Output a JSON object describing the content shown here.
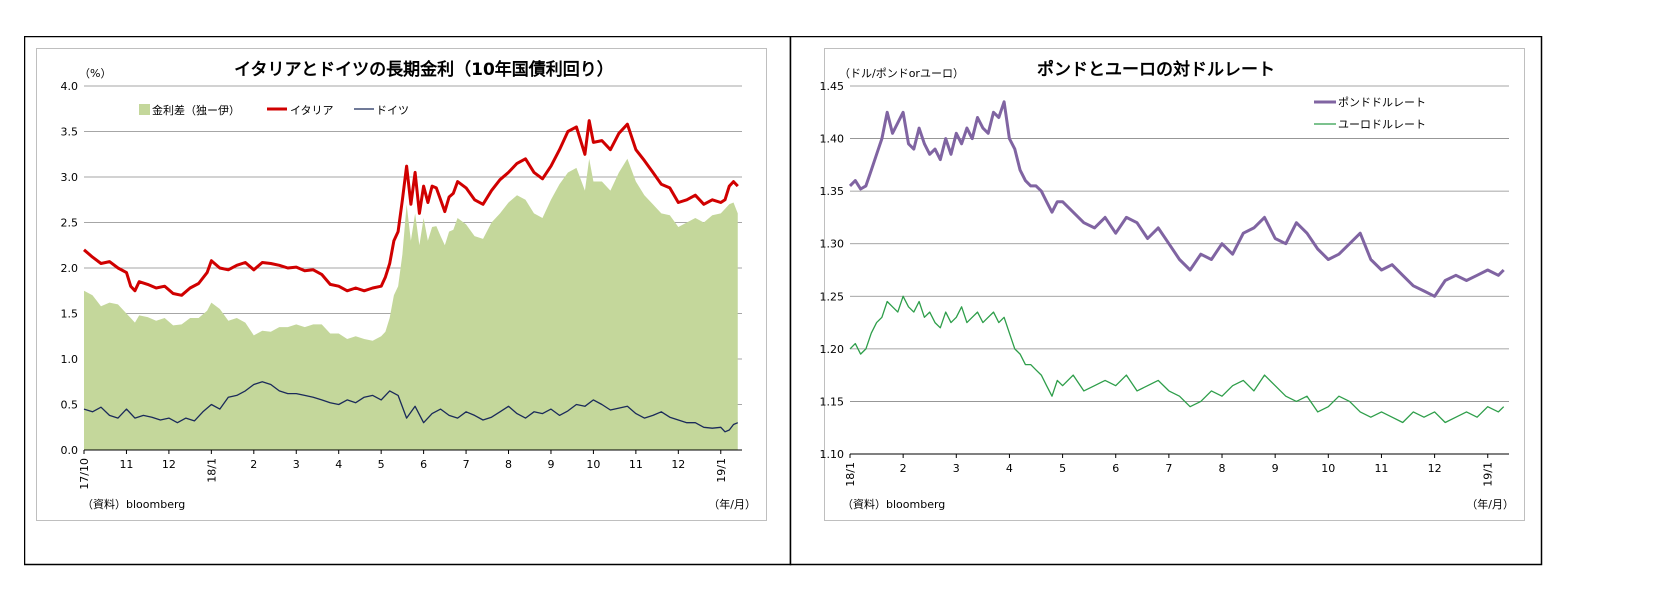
{
  "colors": {
    "spread_fill": "#c4d79b",
    "italy": "#d00000",
    "germany": "#1a2a5a",
    "gbp": "#8064a2",
    "eur": "#2e9e4a",
    "grid": "#888888"
  },
  "chart_data": [
    {
      "type": "line",
      "title": "イタリアとドイツの長期金利（10年国債利回り）",
      "unit_label": "（%）",
      "source": "（資料）bloomberg",
      "xlabel": "（年/月）",
      "ylim": [
        0,
        4.0
      ],
      "yticks": [
        "0.0",
        "0.5",
        "1.0",
        "1.5",
        "2.0",
        "2.5",
        "3.0",
        "3.5",
        "4.0"
      ],
      "xlim": [
        0,
        15.5
      ],
      "xticks": [
        {
          "pos": 0,
          "label": "17/10",
          "rotated": true
        },
        {
          "pos": 1,
          "label": "11",
          "rotated": false
        },
        {
          "pos": 2,
          "label": "12",
          "rotated": false
        },
        {
          "pos": 3,
          "label": "18/1",
          "rotated": true
        },
        {
          "pos": 4,
          "label": "2",
          "rotated": false
        },
        {
          "pos": 5,
          "label": "3",
          "rotated": false
        },
        {
          "pos": 6,
          "label": "4",
          "rotated": false
        },
        {
          "pos": 7,
          "label": "5",
          "rotated": false
        },
        {
          "pos": 8,
          "label": "6",
          "rotated": false
        },
        {
          "pos": 9,
          "label": "7",
          "rotated": false
        },
        {
          "pos": 10,
          "label": "8",
          "rotated": false
        },
        {
          "pos": 11,
          "label": "9",
          "rotated": false
        },
        {
          "pos": 12,
          "label": "10",
          "rotated": false
        },
        {
          "pos": 13,
          "label": "11",
          "rotated": false
        },
        {
          "pos": 14,
          "label": "12",
          "rotated": false
        },
        {
          "pos": 15,
          "label": "19/1",
          "rotated": true
        }
      ],
      "legend": [
        "金利差（独ー伊）",
        "イタリア",
        "ドイツ"
      ],
      "series": [
        {
          "name": "イタリア",
          "style": "line-thick",
          "x": [
            0,
            0.2,
            0.4,
            0.6,
            0.8,
            1.0,
            1.1,
            1.2,
            1.3,
            1.5,
            1.7,
            1.9,
            2.1,
            2.3,
            2.5,
            2.7,
            2.9,
            3.0,
            3.2,
            3.4,
            3.6,
            3.8,
            4.0,
            4.2,
            4.4,
            4.6,
            4.8,
            5.0,
            5.2,
            5.4,
            5.6,
            5.8,
            6.0,
            6.2,
            6.4,
            6.6,
            6.8,
            7.0,
            7.1,
            7.2,
            7.3,
            7.4,
            7.5,
            7.6,
            7.7,
            7.8,
            7.9,
            8.0,
            8.1,
            8.2,
            8.3,
            8.4,
            8.5,
            8.6,
            8.7,
            8.8,
            9.0,
            9.2,
            9.4,
            9.6,
            9.8,
            10.0,
            10.2,
            10.4,
            10.6,
            10.8,
            11.0,
            11.2,
            11.4,
            11.6,
            11.8,
            11.9,
            12.0,
            12.2,
            12.4,
            12.6,
            12.8,
            13.0,
            13.2,
            13.4,
            13.6,
            13.8,
            14.0,
            14.2,
            14.4,
            14.6,
            14.8,
            15.0,
            15.1,
            15.2,
            15.3,
            15.4
          ],
          "y": [
            2.2,
            2.12,
            2.05,
            2.07,
            2.0,
            1.95,
            1.8,
            1.75,
            1.85,
            1.82,
            1.78,
            1.8,
            1.72,
            1.7,
            1.78,
            1.83,
            1.95,
            2.08,
            2.0,
            1.98,
            2.03,
            2.06,
            1.98,
            2.06,
            2.05,
            2.03,
            2.0,
            2.01,
            1.97,
            1.98,
            1.93,
            1.82,
            1.8,
            1.75,
            1.78,
            1.75,
            1.78,
            1.8,
            1.9,
            2.05,
            2.3,
            2.4,
            2.75,
            3.12,
            2.7,
            3.05,
            2.6,
            2.9,
            2.72,
            2.9,
            2.88,
            2.75,
            2.62,
            2.78,
            2.82,
            2.95,
            2.88,
            2.75,
            2.7,
            2.85,
            2.97,
            3.05,
            3.15,
            3.2,
            3.05,
            2.98,
            3.12,
            3.3,
            3.5,
            3.55,
            3.25,
            3.62,
            3.38,
            3.4,
            3.3,
            3.48,
            3.58,
            3.3,
            3.18,
            3.05,
            2.92,
            2.88,
            2.72,
            2.75,
            2.8,
            2.7,
            2.75,
            2.72,
            2.75,
            2.9,
            2.95,
            2.9
          ]
        },
        {
          "name": "ドイツ",
          "style": "line-thin",
          "x": [
            0,
            0.2,
            0.4,
            0.6,
            0.8,
            1.0,
            1.2,
            1.4,
            1.6,
            1.8,
            2.0,
            2.2,
            2.4,
            2.6,
            2.8,
            3.0,
            3.2,
            3.4,
            3.6,
            3.8,
            4.0,
            4.2,
            4.4,
            4.6,
            4.8,
            5.0,
            5.2,
            5.4,
            5.6,
            5.8,
            6.0,
            6.2,
            6.4,
            6.6,
            6.8,
            7.0,
            7.2,
            7.4,
            7.6,
            7.8,
            8.0,
            8.2,
            8.4,
            8.6,
            8.8,
            9.0,
            9.2,
            9.4,
            9.6,
            9.8,
            10.0,
            10.2,
            10.4,
            10.6,
            10.8,
            11.0,
            11.2,
            11.4,
            11.6,
            11.8,
            12.0,
            12.2,
            12.4,
            12.6,
            12.8,
            13.0,
            13.2,
            13.4,
            13.6,
            13.8,
            14.0,
            14.2,
            14.4,
            14.6,
            14.8,
            15.0,
            15.1,
            15.2,
            15.3,
            15.4
          ],
          "y": [
            0.45,
            0.42,
            0.47,
            0.38,
            0.35,
            0.45,
            0.35,
            0.38,
            0.36,
            0.33,
            0.35,
            0.3,
            0.35,
            0.32,
            0.42,
            0.5,
            0.45,
            0.58,
            0.6,
            0.65,
            0.72,
            0.75,
            0.72,
            0.65,
            0.62,
            0.62,
            0.6,
            0.58,
            0.55,
            0.52,
            0.5,
            0.55,
            0.52,
            0.58,
            0.6,
            0.55,
            0.65,
            0.6,
            0.35,
            0.48,
            0.3,
            0.4,
            0.45,
            0.38,
            0.35,
            0.42,
            0.38,
            0.33,
            0.36,
            0.42,
            0.48,
            0.4,
            0.35,
            0.42,
            0.4,
            0.45,
            0.38,
            0.43,
            0.5,
            0.48,
            0.55,
            0.5,
            0.44,
            0.46,
            0.48,
            0.4,
            0.35,
            0.38,
            0.42,
            0.36,
            0.33,
            0.3,
            0.3,
            0.25,
            0.24,
            0.25,
            0.2,
            0.22,
            0.28,
            0.3
          ]
        },
        {
          "name": "金利差（独ー伊）",
          "style": "area",
          "x": [
            0,
            0.2,
            0.4,
            0.6,
            0.8,
            1.0,
            1.1,
            1.2,
            1.3,
            1.5,
            1.7,
            1.9,
            2.1,
            2.3,
            2.5,
            2.7,
            2.9,
            3.0,
            3.2,
            3.4,
            3.6,
            3.8,
            4.0,
            4.2,
            4.4,
            4.6,
            4.8,
            5.0,
            5.2,
            5.4,
            5.6,
            5.8,
            6.0,
            6.2,
            6.4,
            6.6,
            6.8,
            7.0,
            7.1,
            7.2,
            7.3,
            7.4,
            7.5,
            7.6,
            7.7,
            7.8,
            7.9,
            8.0,
            8.1,
            8.2,
            8.3,
            8.4,
            8.5,
            8.6,
            8.7,
            8.8,
            9.0,
            9.2,
            9.4,
            9.6,
            9.8,
            10.0,
            10.2,
            10.4,
            10.6,
            10.8,
            11.0,
            11.2,
            11.4,
            11.6,
            11.8,
            11.9,
            12.0,
            12.2,
            12.4,
            12.6,
            12.8,
            13.0,
            13.2,
            13.4,
            13.6,
            13.8,
            14.0,
            14.2,
            14.4,
            14.6,
            14.8,
            15.0,
            15.1,
            15.2,
            15.3,
            15.4
          ],
          "y": [
            1.75,
            1.7,
            1.58,
            1.62,
            1.6,
            1.5,
            1.45,
            1.4,
            1.48,
            1.46,
            1.42,
            1.45,
            1.37,
            1.38,
            1.45,
            1.45,
            1.53,
            1.62,
            1.55,
            1.42,
            1.45,
            1.4,
            1.26,
            1.31,
            1.3,
            1.35,
            1.35,
            1.38,
            1.35,
            1.38,
            1.38,
            1.28,
            1.28,
            1.22,
            1.25,
            1.22,
            1.2,
            1.25,
            1.3,
            1.45,
            1.7,
            1.8,
            2.15,
            2.7,
            2.3,
            2.6,
            2.25,
            2.55,
            2.3,
            2.45,
            2.46,
            2.35,
            2.25,
            2.4,
            2.42,
            2.55,
            2.48,
            2.35,
            2.32,
            2.5,
            2.6,
            2.72,
            2.8,
            2.75,
            2.6,
            2.55,
            2.75,
            2.92,
            3.05,
            3.1,
            2.85,
            3.2,
            2.95,
            2.95,
            2.85,
            3.05,
            3.2,
            2.95,
            2.8,
            2.7,
            2.6,
            2.58,
            2.45,
            2.5,
            2.55,
            2.5,
            2.58,
            2.6,
            2.65,
            2.7,
            2.72,
            2.6
          ]
        }
      ]
    },
    {
      "type": "line",
      "title": "ポンドとユーロの対ドルレート",
      "unit_label": "（ドル/ポンドorユーロ）",
      "source": "（資料）bloomberg",
      "xlabel": "（年/月）",
      "ylim": [
        1.1,
        1.45
      ],
      "yticks": [
        "1.10",
        "1.15",
        "1.20",
        "1.25",
        "1.30",
        "1.35",
        "1.40",
        "1.45"
      ],
      "xlim": [
        0,
        12.4
      ],
      "xticks": [
        {
          "pos": 0,
          "label": "18/1",
          "rotated": true
        },
        {
          "pos": 1,
          "label": "2",
          "rotated": false
        },
        {
          "pos": 2,
          "label": "3",
          "rotated": false
        },
        {
          "pos": 3,
          "label": "4",
          "rotated": false
        },
        {
          "pos": 4,
          "label": "5",
          "rotated": false
        },
        {
          "pos": 5,
          "label": "6",
          "rotated": false
        },
        {
          "pos": 6,
          "label": "7",
          "rotated": false
        },
        {
          "pos": 7,
          "label": "8",
          "rotated": false
        },
        {
          "pos": 8,
          "label": "9",
          "rotated": false
        },
        {
          "pos": 9,
          "label": "10",
          "rotated": false
        },
        {
          "pos": 10,
          "label": "11",
          "rotated": false
        },
        {
          "pos": 11,
          "label": "12",
          "rotated": false
        },
        {
          "pos": 12,
          "label": "19/1",
          "rotated": true
        }
      ],
      "legend": [
        "ポンドドルレート",
        "ユーロドルレート"
      ],
      "series": [
        {
          "name": "ポンドドルレート",
          "style": "line-thick",
          "x": [
            0,
            0.1,
            0.2,
            0.3,
            0.4,
            0.5,
            0.6,
            0.7,
            0.8,
            0.9,
            1.0,
            1.1,
            1.2,
            1.3,
            1.4,
            1.5,
            1.6,
            1.7,
            1.8,
            1.9,
            2.0,
            2.1,
            2.2,
            2.3,
            2.4,
            2.5,
            2.6,
            2.7,
            2.8,
            2.9,
            3.0,
            3.1,
            3.2,
            3.3,
            3.4,
            3.5,
            3.6,
            3.7,
            3.8,
            3.9,
            4.0,
            4.2,
            4.4,
            4.6,
            4.8,
            5.0,
            5.2,
            5.4,
            5.6,
            5.8,
            6.0,
            6.2,
            6.4,
            6.6,
            6.8,
            7.0,
            7.2,
            7.4,
            7.6,
            7.8,
            8.0,
            8.2,
            8.4,
            8.6,
            8.8,
            9.0,
            9.2,
            9.4,
            9.6,
            9.8,
            10.0,
            10.2,
            10.4,
            10.6,
            10.8,
            11.0,
            11.2,
            11.4,
            11.6,
            11.8,
            12.0,
            12.2,
            12.3
          ],
          "y": [
            1.355,
            1.36,
            1.352,
            1.355,
            1.37,
            1.385,
            1.4,
            1.425,
            1.405,
            1.415,
            1.425,
            1.395,
            1.39,
            1.41,
            1.395,
            1.385,
            1.39,
            1.38,
            1.4,
            1.385,
            1.405,
            1.395,
            1.41,
            1.4,
            1.42,
            1.41,
            1.405,
            1.425,
            1.42,
            1.435,
            1.4,
            1.39,
            1.37,
            1.36,
            1.355,
            1.355,
            1.35,
            1.34,
            1.33,
            1.34,
            1.34,
            1.33,
            1.32,
            1.315,
            1.325,
            1.31,
            1.325,
            1.32,
            1.305,
            1.315,
            1.3,
            1.285,
            1.275,
            1.29,
            1.285,
            1.3,
            1.29,
            1.31,
            1.315,
            1.325,
            1.305,
            1.3,
            1.32,
            1.31,
            1.295,
            1.285,
            1.29,
            1.3,
            1.31,
            1.285,
            1.275,
            1.28,
            1.27,
            1.26,
            1.255,
            1.25,
            1.265,
            1.27,
            1.265,
            1.27,
            1.275,
            1.27,
            1.275
          ]
        },
        {
          "name": "ユーロドルレート",
          "style": "line-thin",
          "x": [
            0,
            0.1,
            0.2,
            0.3,
            0.4,
            0.5,
            0.6,
            0.7,
            0.8,
            0.9,
            1.0,
            1.1,
            1.2,
            1.3,
            1.4,
            1.5,
            1.6,
            1.7,
            1.8,
            1.9,
            2.0,
            2.1,
            2.2,
            2.3,
            2.4,
            2.5,
            2.6,
            2.7,
            2.8,
            2.9,
            3.0,
            3.1,
            3.2,
            3.3,
            3.4,
            3.5,
            3.6,
            3.7,
            3.8,
            3.9,
            4.0,
            4.2,
            4.4,
            4.6,
            4.8,
            5.0,
            5.2,
            5.4,
            5.6,
            5.8,
            6.0,
            6.2,
            6.4,
            6.6,
            6.8,
            7.0,
            7.2,
            7.4,
            7.6,
            7.8,
            8.0,
            8.2,
            8.4,
            8.6,
            8.8,
            9.0,
            9.2,
            9.4,
            9.6,
            9.8,
            10.0,
            10.2,
            10.4,
            10.6,
            10.8,
            11.0,
            11.2,
            11.4,
            11.6,
            11.8,
            12.0,
            12.2,
            12.3
          ],
          "y": [
            1.2,
            1.205,
            1.195,
            1.2,
            1.215,
            1.225,
            1.23,
            1.245,
            1.24,
            1.235,
            1.25,
            1.24,
            1.235,
            1.245,
            1.23,
            1.235,
            1.225,
            1.22,
            1.235,
            1.225,
            1.23,
            1.24,
            1.225,
            1.23,
            1.235,
            1.225,
            1.23,
            1.235,
            1.225,
            1.23,
            1.215,
            1.2,
            1.195,
            1.185,
            1.185,
            1.18,
            1.175,
            1.165,
            1.155,
            1.17,
            1.165,
            1.175,
            1.16,
            1.165,
            1.17,
            1.165,
            1.175,
            1.16,
            1.165,
            1.17,
            1.16,
            1.155,
            1.145,
            1.15,
            1.16,
            1.155,
            1.165,
            1.17,
            1.16,
            1.175,
            1.165,
            1.155,
            1.15,
            1.155,
            1.14,
            1.145,
            1.155,
            1.15,
            1.14,
            1.135,
            1.14,
            1.135,
            1.13,
            1.14,
            1.135,
            1.14,
            1.13,
            1.135,
            1.14,
            1.135,
            1.145,
            1.14,
            1.145
          ]
        }
      ]
    }
  ]
}
